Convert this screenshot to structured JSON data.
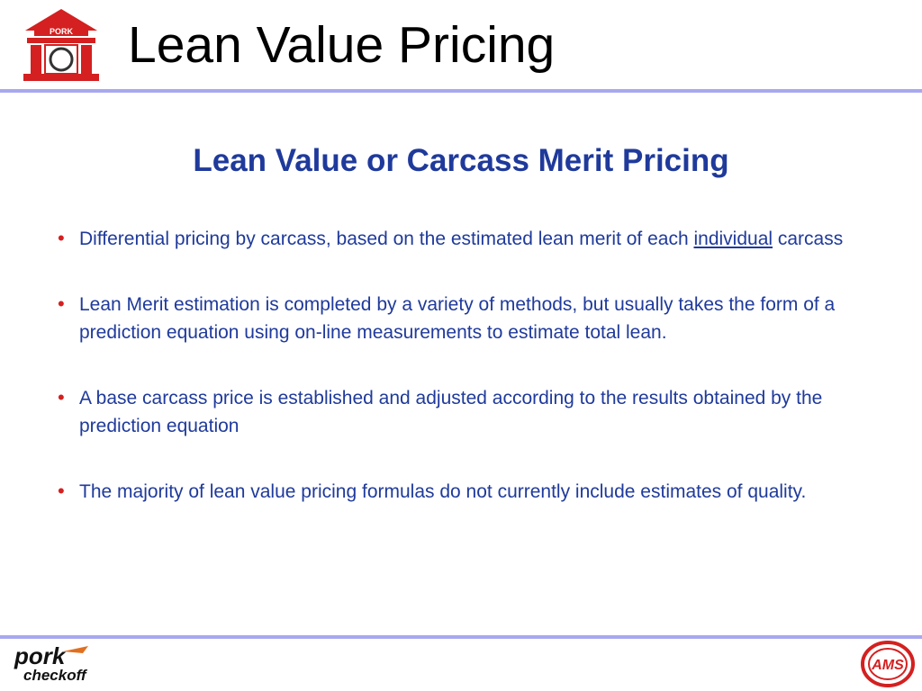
{
  "header": {
    "title": "Lean Value Pricing",
    "logo": {
      "icon": "pork-building-logo-icon",
      "text": "PORK",
      "color": "#d42020"
    }
  },
  "subtitle": "Lean Value or Carcass Merit Pricing",
  "bullets": [
    {
      "before": "Differential pricing by carcass, based on the estimated lean merit of each ",
      "underlined": "individual",
      "after": " carcass"
    },
    {
      "text": "Lean Merit estimation is completed by a variety of methods, but usually takes the form of a prediction equation using on-line measurements to estimate total lean."
    },
    {
      "text": "A base carcass price is established and adjusted according to the results obtained by the prediction equation"
    },
    {
      "text": "The majority of lean value pricing formulas do not currently include estimates of quality."
    }
  ],
  "footer": {
    "left_logo": {
      "icon": "pork-checkoff-logo-icon",
      "line1": "pork",
      "line2": "checkoff"
    },
    "right_logo": {
      "icon": "ams-logo-icon",
      "text": "AMS"
    }
  },
  "colors": {
    "accent": "#1f3a9b",
    "bullet": "#d42020",
    "rule": "#a8a8f0"
  }
}
